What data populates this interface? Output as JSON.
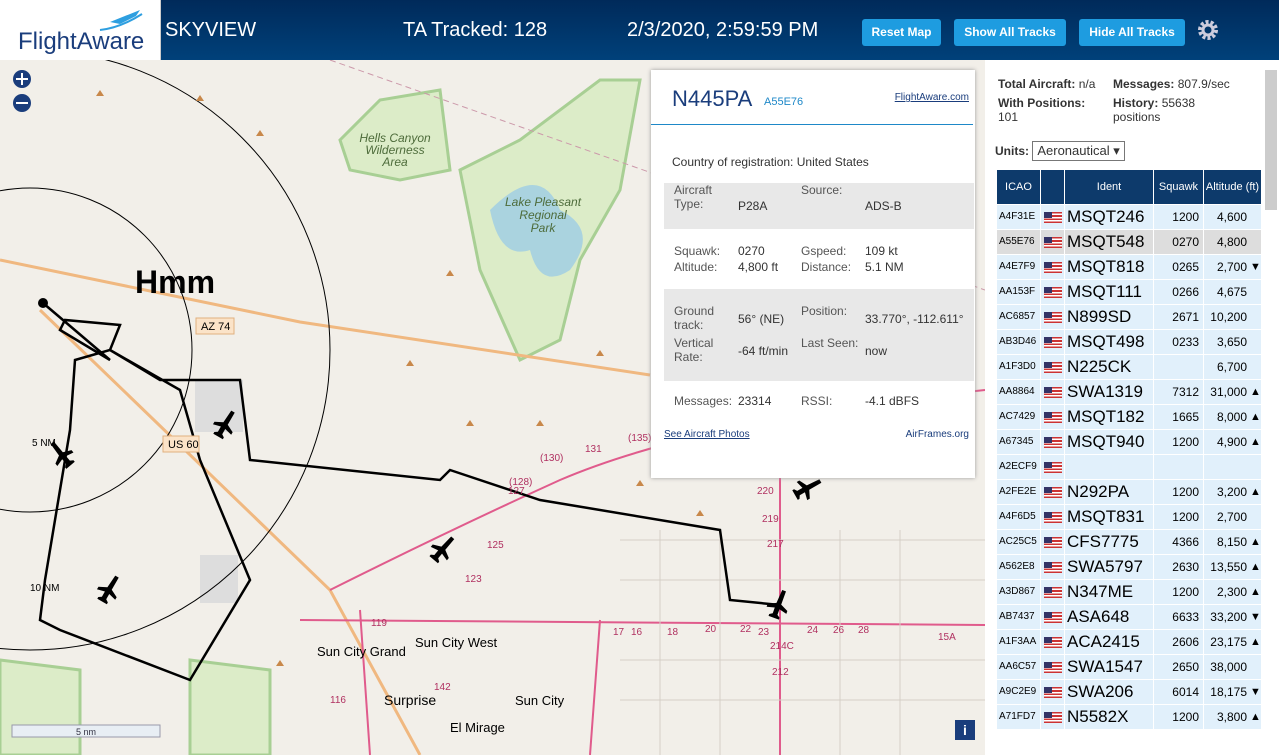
{
  "header": {
    "logo": "FlightAware",
    "app": "SKYVIEW",
    "tracked": "TA Tracked: 128",
    "datetime": "2/3/2020, 2:59:59 PM",
    "buttons": [
      "Reset Map",
      "Show All Tracks",
      "Hide All Tracks"
    ]
  },
  "map": {
    "labels": [
      "Hmm",
      "Hells Canyon",
      "Wilderness",
      "Area",
      "Lake Pleasant",
      "Regional",
      "Park",
      "AZ 74",
      "US 60",
      "5 NM",
      "10 NM",
      "Sun City West",
      "Sun City Grand",
      "Surprise",
      "Sun City",
      "El Mirage",
      "(130)",
      "(128)",
      "131",
      "(135)",
      "127",
      "125",
      "123",
      "119",
      "116",
      "142",
      "220",
      "219",
      "217",
      "214C",
      "212",
      "17",
      "16",
      "18",
      "20",
      "22",
      "23",
      "24",
      "26",
      "28",
      "15A"
    ],
    "scale": "5 nm"
  },
  "popup": {
    "ident": "N445PA",
    "hex": "A55E76",
    "link": "FlightAware.com",
    "country_label": "Country of registration:",
    "country": "United States",
    "rows": [
      [
        [
          "Aircraft Type:",
          "P28A"
        ],
        [
          "Source:",
          "ADS-B"
        ]
      ],
      [
        [
          "Squawk:",
          "0270"
        ],
        [
          "Gspeed:",
          "109 kt"
        ]
      ],
      [
        [
          "Altitude:",
          "4,800 ft"
        ],
        [
          "Distance:",
          "5.1 NM"
        ]
      ],
      [
        [
          "Ground track:",
          "56° (NE)"
        ],
        [
          "Position:",
          "33.770°, -112.611°"
        ]
      ],
      [
        [
          "Vertical Rate:",
          "-64 ft/min"
        ],
        [
          "Last Seen:",
          "now"
        ]
      ],
      [
        [
          "Messages:",
          "23314"
        ],
        [
          "RSSI:",
          "-4.1 dBFS"
        ]
      ]
    ],
    "photos": "See Aircraft Photos",
    "airframes": "AirFrames.org"
  },
  "sidebar": {
    "total_label": "Total Aircraft:",
    "total": "n/a",
    "messages_label": "Messages:",
    "messages": "807.9/sec",
    "positions_label": "With Positions:",
    "positions": "101",
    "history_label": "History:",
    "history": "55638 positions",
    "units_label": "Units:",
    "units": "Aeronautical"
  },
  "table": {
    "columns": [
      "ICAO",
      "Ident",
      "Squawk",
      "Altitude (ft)"
    ],
    "rows": [
      [
        "A4F31E",
        "MSQT246",
        "1200",
        "4,600",
        null
      ],
      [
        "A55E76",
        "MSQT548",
        "0270",
        "4,800",
        null
      ],
      [
        "A4E7F9",
        "MSQT818",
        "0265",
        "2,700",
        "▼"
      ],
      [
        "AA153F",
        "MSQT111",
        "0266",
        "4,675",
        null
      ],
      [
        "AC6857",
        "N899SD",
        "2671",
        "10,200",
        null
      ],
      [
        "AB3D46",
        "MSQT498",
        "0233",
        "3,650",
        null
      ],
      [
        "A1F3D0",
        "N225CK",
        null,
        "6,700",
        null
      ],
      [
        "AA8864",
        "SWA1319",
        "7312",
        "31,000",
        "▲"
      ],
      [
        "AC7429",
        "MSQT182",
        "1665",
        "8,000",
        "▲"
      ],
      [
        "A67345",
        "MSQT940",
        "1200",
        "4,900",
        "▲"
      ],
      [
        "A2ECF9",
        null,
        null,
        null,
        null
      ],
      [
        "A2FE2E",
        "N292PA",
        "1200",
        "3,200",
        "▲"
      ],
      [
        "A4F6D5",
        "MSQT831",
        "1200",
        "2,700",
        null
      ],
      [
        "AC25C5",
        "CFS7775",
        "4366",
        "8,150",
        "▲"
      ],
      [
        "A562E8",
        "SWA5797",
        "2630",
        "13,550",
        "▲"
      ],
      [
        "A3D867",
        "N347ME",
        "1200",
        "2,300",
        "▲"
      ],
      [
        "AB7437",
        "ASA648",
        "6633",
        "33,200",
        "▼"
      ],
      [
        "A1F3AA",
        "ACA2415",
        "2606",
        "23,175",
        "▲"
      ],
      [
        "AA6C57",
        "SWA1547",
        "2650",
        "38,000",
        null
      ],
      [
        "A9C2E9",
        "SWA206",
        "6014",
        "18,175",
        "▼"
      ],
      [
        "A71FD7",
        "N5582X",
        "1200",
        "3,800",
        "▲"
      ]
    ]
  }
}
